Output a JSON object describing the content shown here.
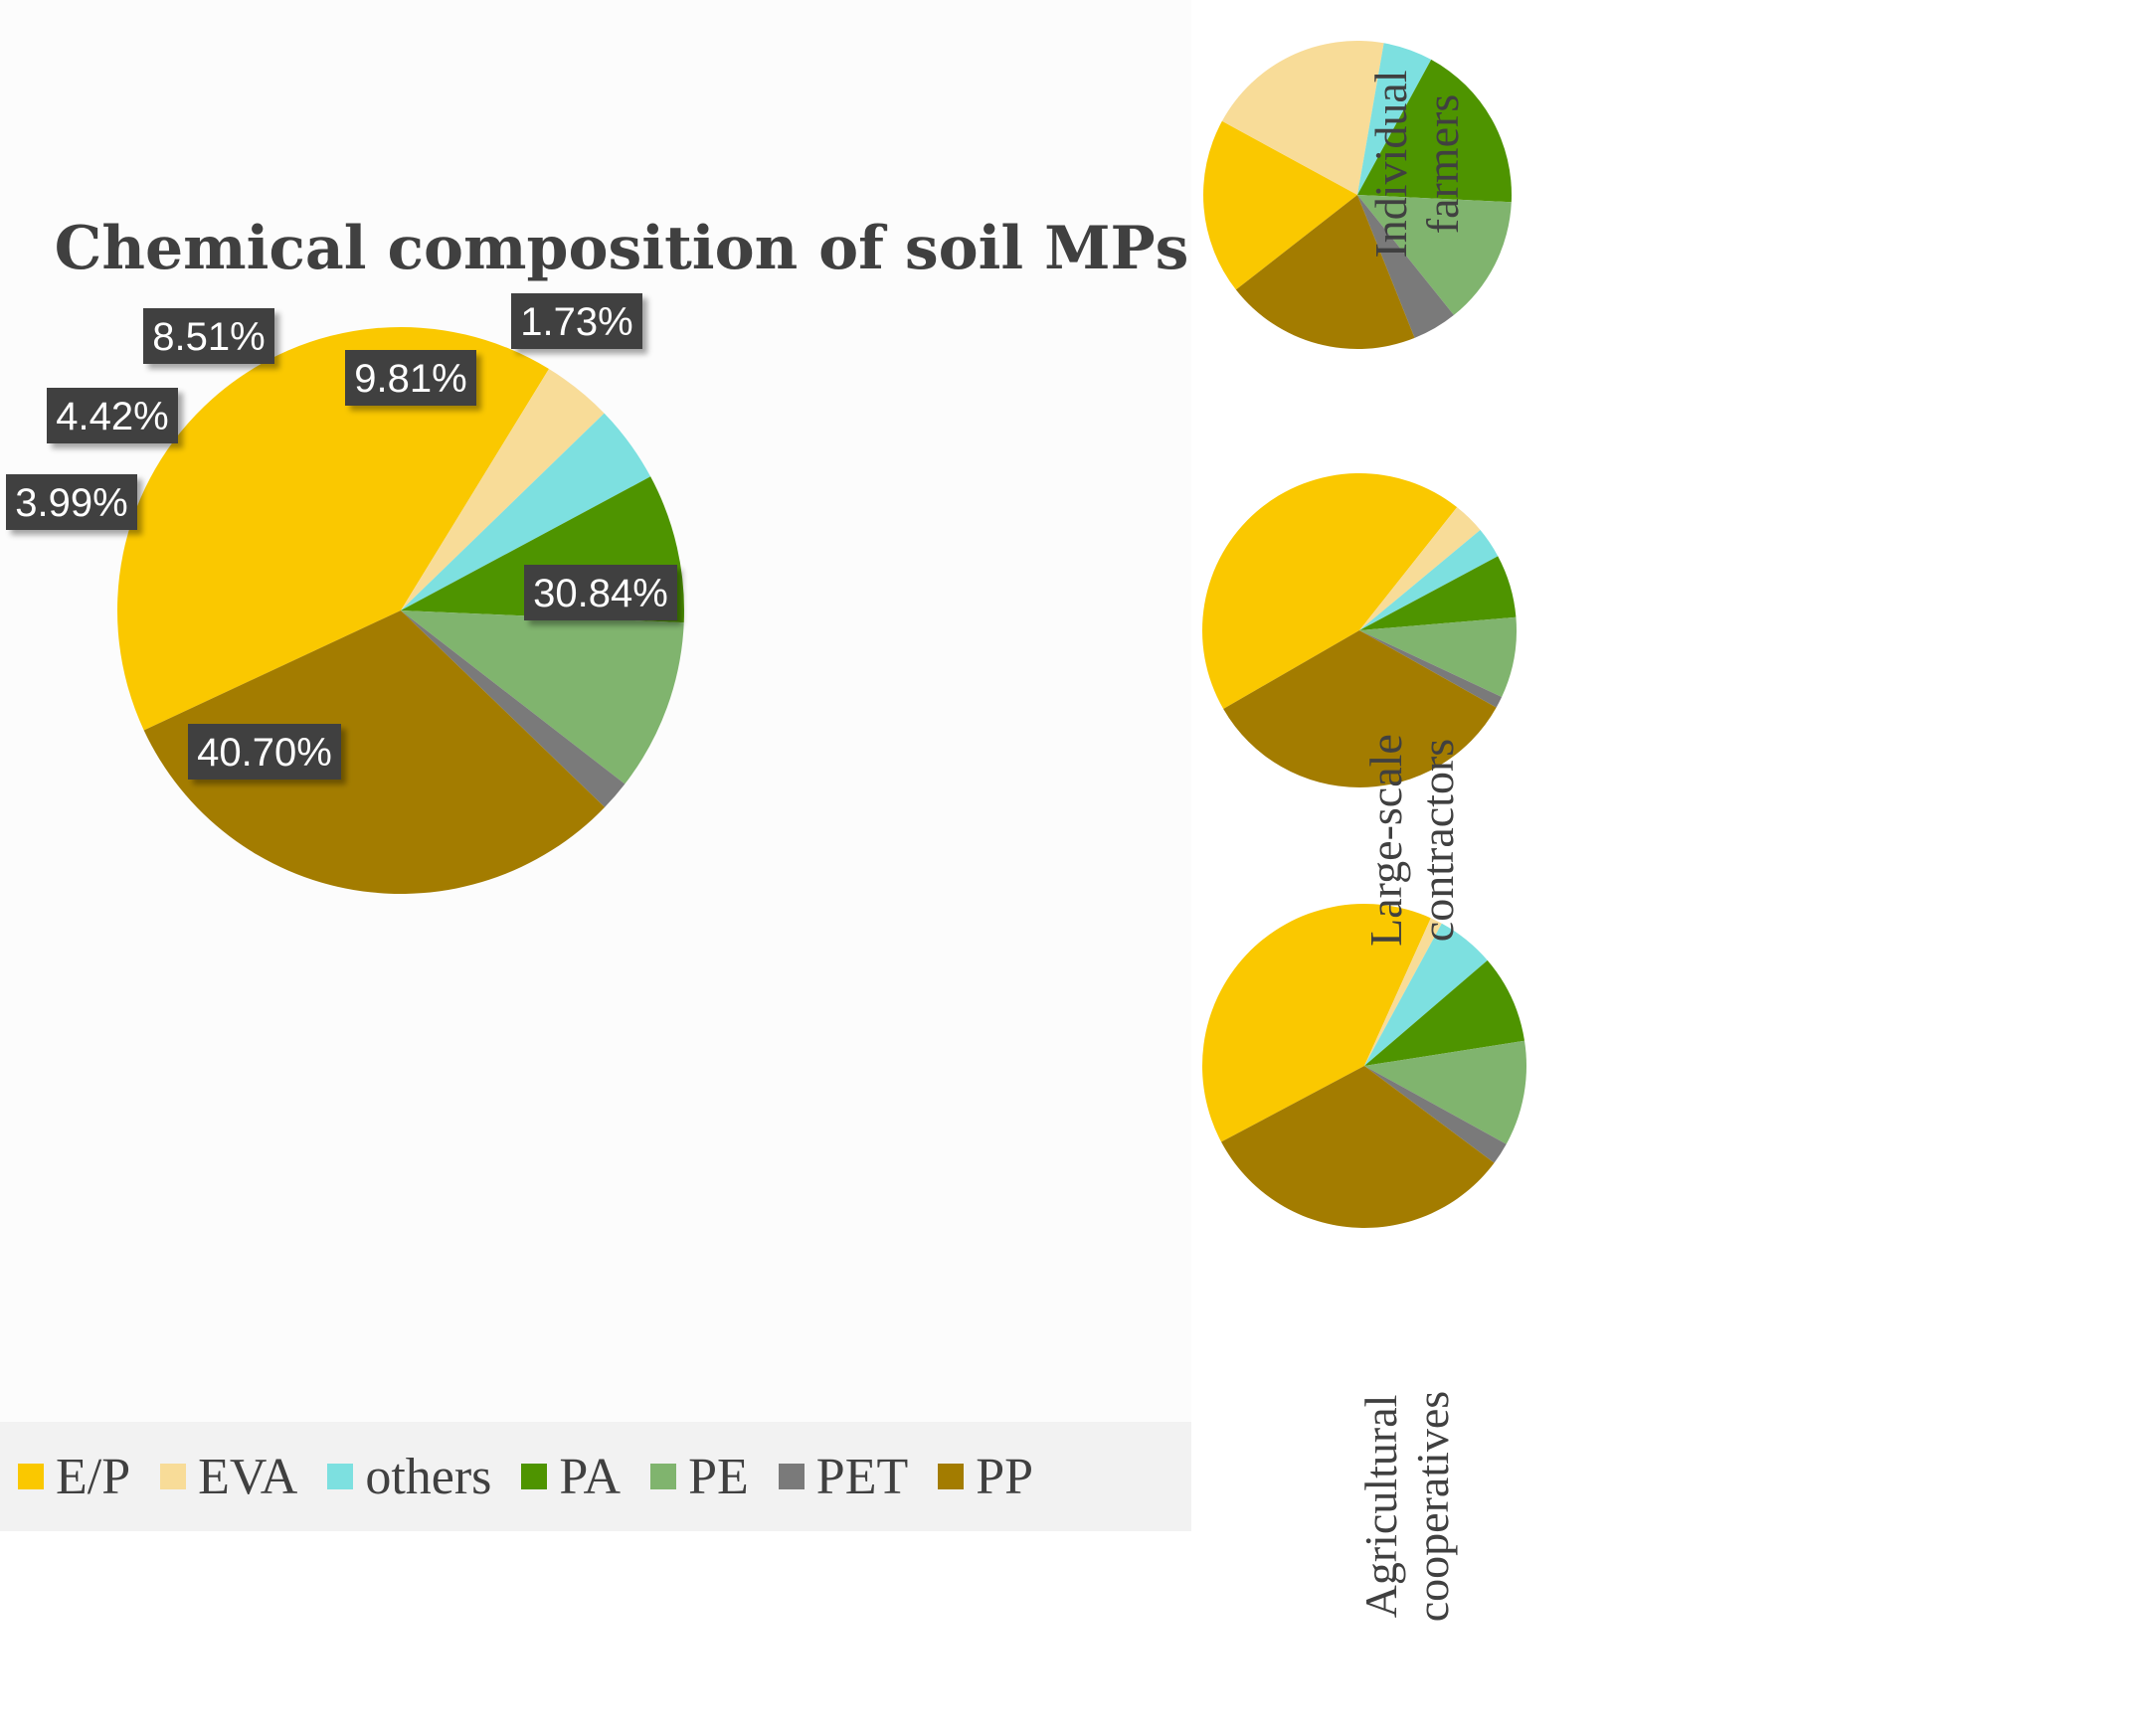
{
  "series_names": [
    "E/P",
    "EVA",
    "others",
    "PA",
    "PE",
    "PET",
    "PP"
  ],
  "colors": {
    "E/P": "#fac800",
    "EVA": "#f8dc98",
    "others": "#7de0e0",
    "PA": "#4e9400",
    "PE": "#80b46e",
    "PET": "#7a7a7a",
    "PP": "#a37c00"
  },
  "chart_data": [
    {
      "type": "pie",
      "title": "Chemical composition of soil MPs",
      "labels": [
        "E/P",
        "EVA",
        "others",
        "PA",
        "PE",
        "PET",
        "PP"
      ],
      "values": [
        40.7,
        3.99,
        4.42,
        8.51,
        9.81,
        1.73,
        30.84
      ],
      "data_labels": [
        "40.70%",
        "3.99%",
        "4.42%",
        "8.51%",
        "9.81%",
        "1.73%",
        "30.84%"
      ],
      "legend_position": "bottom"
    },
    {
      "type": "pie",
      "title": "Individual farmers",
      "labels": [
        "E/P",
        "EVA",
        "others",
        "PA",
        "PE",
        "PET",
        "PP"
      ],
      "values": [
        18.5,
        19.8,
        5.2,
        17.8,
        13.5,
        4.7,
        20.5
      ]
    },
    {
      "type": "pie",
      "title": "Large-scale contractors",
      "labels": [
        "E/P",
        "EVA",
        "others",
        "PA",
        "PE",
        "PET",
        "PP"
      ],
      "values": [
        44.0,
        3.3,
        3.2,
        6.5,
        8.3,
        1.2,
        33.5
      ]
    },
    {
      "type": "pie",
      "title": "Agricultural cooperatives",
      "labels": [
        "E/P",
        "EVA",
        "others",
        "PA",
        "PE",
        "PET",
        "PP"
      ],
      "values": [
        39.5,
        1.2,
        5.8,
        8.8,
        10.5,
        2.2,
        32.0
      ]
    }
  ],
  "row_labels": [
    [
      "Individual",
      "farmers"
    ],
    [
      "Large-scale",
      "contractors"
    ],
    [
      "Agricultural",
      "cooperatives"
    ]
  ]
}
